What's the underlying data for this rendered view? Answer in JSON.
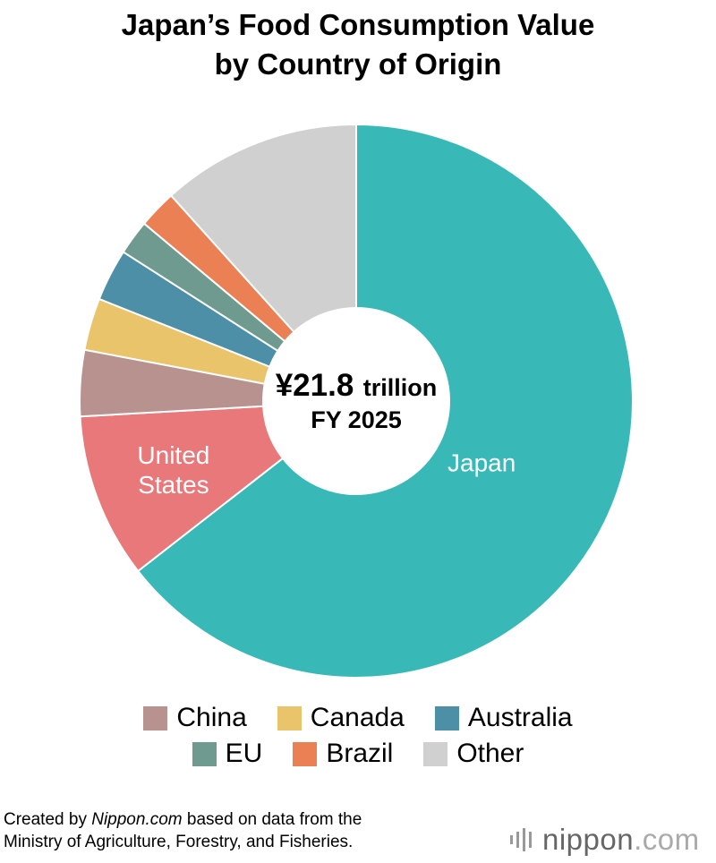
{
  "chart_data": {
    "type": "pie",
    "title_lines": [
      "Japan’s Food Consumption Value",
      "by Country of Origin"
    ],
    "center_label": {
      "value": "¥21.8",
      "unit": "trillion",
      "period": "FY 2025"
    },
    "slices": [
      {
        "name": "Japan",
        "value": 63.5,
        "color": "#38b9b8",
        "label": "Japan"
      },
      {
        "name": "United States",
        "value": 9.5,
        "color": "#e9787a",
        "label": "United States"
      },
      {
        "name": "China",
        "value": 3.8,
        "color": "#b8928f"
      },
      {
        "name": "Canada",
        "value": 3.0,
        "color": "#e9c46a"
      },
      {
        "name": "Australia",
        "value": 3.0,
        "color": "#4e8fa8"
      },
      {
        "name": "EU",
        "value": 2.0,
        "color": "#6f9a8f"
      },
      {
        "name": "Brazil",
        "value": 2.2,
        "color": "#ea8054"
      },
      {
        "name": "Other",
        "value": 11.5,
        "color": "#d0d0d0"
      }
    ],
    "legend": {
      "placement": "bottom",
      "rows": [
        [
          {
            "name": "China",
            "color": "#b8928f"
          },
          {
            "name": "Canada",
            "color": "#e9c46a"
          },
          {
            "name": "Australia",
            "color": "#4e8fa8"
          }
        ],
        [
          {
            "name": "EU",
            "color": "#6f9a8f"
          },
          {
            "name": "Brazil",
            "color": "#ea8054"
          },
          {
            "name": "Other",
            "color": "#d0d0d0"
          }
        ]
      ]
    }
  },
  "source": {
    "prefix": "Created by ",
    "site": "Nippon.com",
    "suffix": " based on data from the",
    "line2": "Ministry of Agriculture, Forestry, and Fisheries."
  },
  "logo": {
    "name": "nippon",
    "dot": ".com",
    "icon": "bars-icon"
  }
}
